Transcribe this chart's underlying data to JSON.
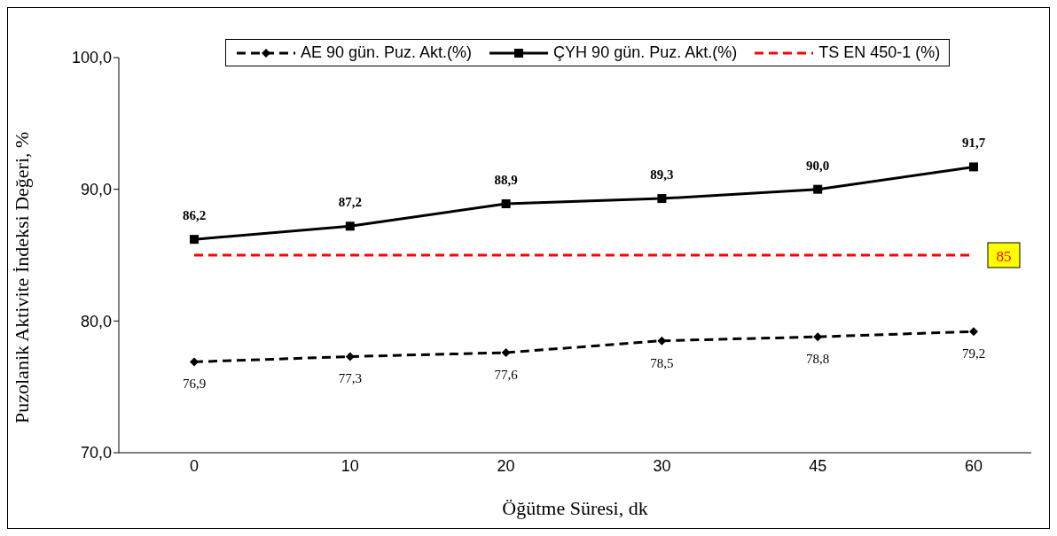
{
  "chart_data": {
    "type": "line",
    "xlabel": "Öğütme Süresi, dk",
    "ylabel": "Puzolanik Aktivite İndeksi Değeri, %",
    "categories": [
      "0",
      "10",
      "20",
      "30",
      "45",
      "60"
    ],
    "series": [
      {
        "name": "AE 90 gün. Puz. Akt.(%)",
        "color": "#000000",
        "marker": "diamond",
        "line_style": "dashed",
        "values": [
          76.9,
          77.3,
          77.6,
          78.5,
          78.8,
          79.2
        ],
        "value_labels": [
          "76,9",
          "77,3",
          "77,6",
          "78,5",
          "78,8",
          "79,2"
        ]
      },
      {
        "name": "ÇYH 90 gün. Puz. Akt.(%)",
        "color": "#000000",
        "marker": "square",
        "line_style": "solid",
        "values": [
          86.2,
          87.2,
          88.9,
          89.3,
          90.0,
          91.7
        ],
        "value_labels": [
          "86,2",
          "87,2",
          "88,9",
          "89,3",
          "90,0",
          "91,7"
        ]
      },
      {
        "name": "TS EN 450-1 (%)",
        "color": "#ff0000",
        "marker": "none",
        "line_style": "dashed",
        "values": [
          85,
          85,
          85,
          85,
          85,
          85
        ],
        "value_labels": [
          null,
          null,
          null,
          null,
          null,
          "85"
        ]
      }
    ],
    "ylim": [
      70,
      100
    ],
    "yticks": [
      {
        "value": 70,
        "label": "70,0"
      },
      {
        "value": 80,
        "label": "80,0"
      },
      {
        "value": 90,
        "label": "90,0"
      },
      {
        "value": 100,
        "label": "100,0"
      }
    ],
    "grid": false,
    "legend": "top"
  }
}
